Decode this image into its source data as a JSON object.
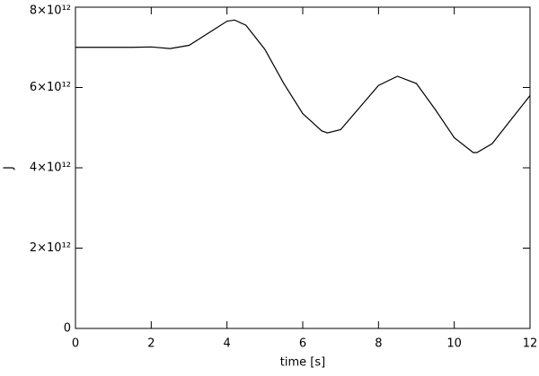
{
  "chart_data": {
    "type": "line",
    "xlabel": "time [s]",
    "ylabel": "J",
    "x": [
      0,
      0.5,
      1,
      1.5,
      2,
      2.5,
      3,
      3.5,
      4,
      4.2,
      4.5,
      5,
      5.5,
      6,
      6.5,
      6.65,
      7,
      7.5,
      8,
      8.5,
      9,
      9.5,
      10,
      10.5,
      10.6,
      11,
      11.5,
      12
    ],
    "series": [
      {
        "color": "#000000",
        "values": [
          7000000000000.0,
          7000000000000.0,
          7000000000000.0,
          7000000000000.0,
          7010000000000.0,
          6970000000000.0,
          7050000000000.0,
          7350000000000.0,
          7650000000000.0,
          7680000000000.0,
          7550000000000.0,
          6950000000000.0,
          6100000000000.0,
          5350000000000.0,
          4920000000000.0,
          4870000000000.0,
          4950000000000.0,
          5500000000000.0,
          6050000000000.0,
          6280000000000.0,
          6100000000000.0,
          5450000000000.0,
          4750000000000.0,
          4380000000000.0,
          4380000000000.0,
          4600000000000.0,
          5200000000000.0,
          5800000000000.0
        ]
      }
    ],
    "xlim": [
      0,
      12
    ],
    "xticks": [
      0,
      2,
      4,
      6,
      8,
      10,
      12
    ],
    "ylim": [
      0,
      8000000000000.0
    ],
    "yticks": [
      0,
      {
        "value": 2000000000000.0,
        "label": "2×10¹²"
      },
      {
        "value": 4000000000000.0,
        "label": "4×10¹²"
      },
      {
        "value": 6000000000000.0,
        "label": "6×10¹²"
      },
      {
        "value": 8000000000000.0,
        "label": "8×10¹²"
      }
    ],
    "grid": false
  }
}
